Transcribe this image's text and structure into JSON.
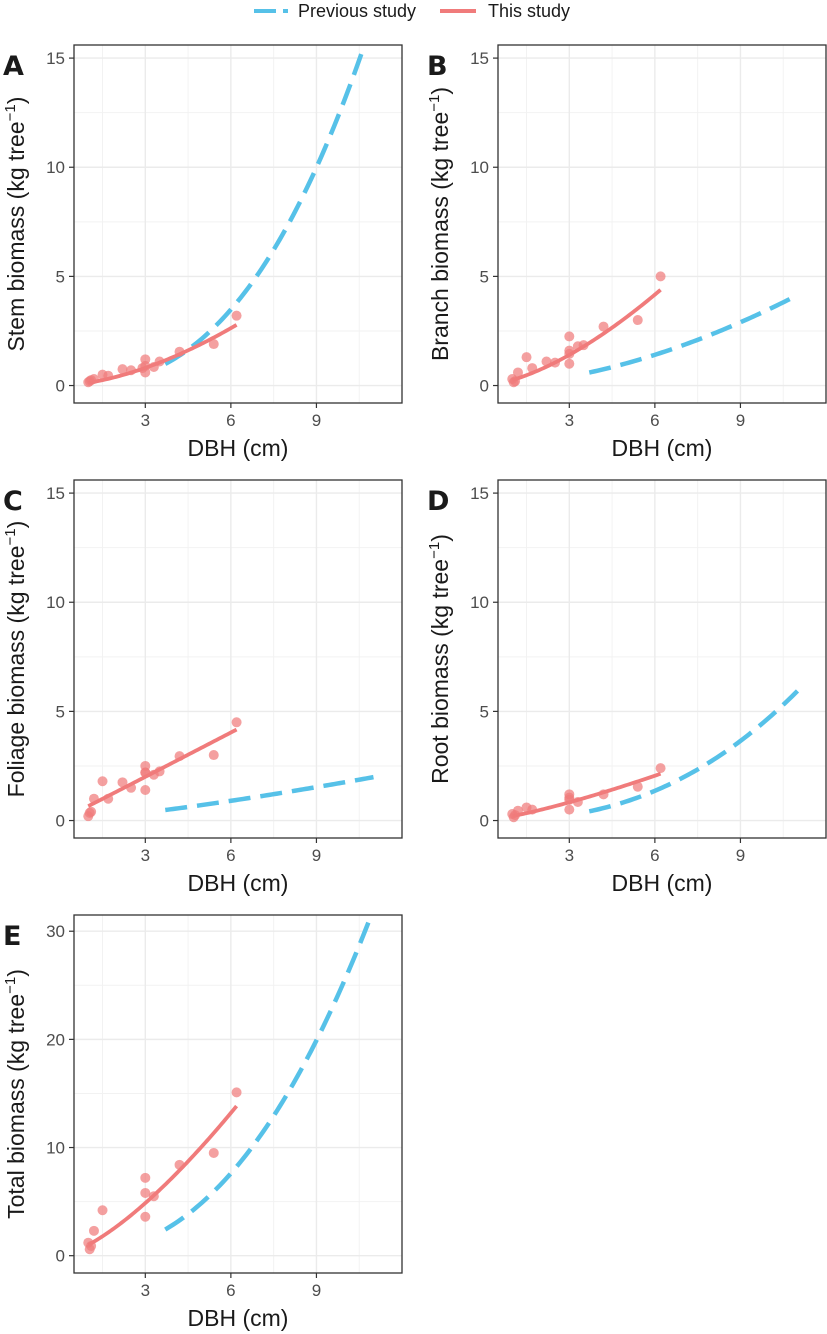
{
  "legend": [
    {
      "label": "Previous study",
      "color": "#56C1E8",
      "dash": true
    },
    {
      "label": "This study",
      "color": "#F07B7B",
      "dash": false
    }
  ],
  "chart_data": [
    {
      "panel": "A",
      "type": "scatter+line",
      "xlabel": "DBH (cm)",
      "ylabel_main": "Stem biomass (kg tree",
      "ylabel_sup": "−1",
      "ylabel_end": ")",
      "xlim": [
        0.5,
        12.0
      ],
      "ylim": [
        -0.8,
        15.6
      ],
      "xticks": [
        3,
        6,
        9
      ],
      "yticks": [
        0,
        5,
        10,
        15
      ],
      "series": [
        {
          "name": "Previous study",
          "kind": "line",
          "a": 0.033,
          "b": 2.6,
          "x_range": [
            3.7,
            11.0
          ]
        },
        {
          "name": "This study",
          "kind": "line",
          "a": 0.125,
          "b": 1.7,
          "x_range": [
            1.0,
            6.2
          ]
        },
        {
          "name": "This study",
          "kind": "points",
          "x": [
            1.0,
            1.05,
            1.1,
            1.2,
            1.5,
            1.7,
            2.2,
            2.5,
            2.9,
            3.0,
            3.0,
            3.0,
            3.3,
            3.5,
            4.2,
            5.4,
            6.2
          ],
          "y": [
            0.15,
            0.2,
            0.25,
            0.3,
            0.5,
            0.45,
            0.75,
            0.7,
            0.8,
            0.9,
            1.2,
            0.6,
            0.85,
            1.1,
            1.55,
            1.9,
            3.2
          ]
        }
      ]
    },
    {
      "panel": "B",
      "type": "scatter+line",
      "xlabel": "DBH (cm)",
      "ylabel_main": "Branch biomass (kg tree",
      "ylabel_sup": "−1",
      "ylabel_end": ")",
      "xlim": [
        0.5,
        12.0
      ],
      "ylim": [
        -0.8,
        15.6
      ],
      "xticks": [
        3,
        6,
        9
      ],
      "yticks": [
        0,
        5,
        10,
        15
      ],
      "series": [
        {
          "name": "Previous study",
          "kind": "line",
          "a": 0.058,
          "b": 1.78,
          "x_range": [
            3.7,
            11.0
          ]
        },
        {
          "name": "This study",
          "kind": "line",
          "a": 0.25,
          "b": 1.57,
          "x_range": [
            1.0,
            6.2
          ]
        },
        {
          "name": "This study",
          "kind": "points",
          "x": [
            1.0,
            1.05,
            1.1,
            1.2,
            1.5,
            1.7,
            2.2,
            2.5,
            3.0,
            3.0,
            3.0,
            3.0,
            3.3,
            3.5,
            4.2,
            5.4,
            6.2
          ],
          "y": [
            0.3,
            0.15,
            0.2,
            0.6,
            1.3,
            0.8,
            1.1,
            1.05,
            2.25,
            1.45,
            1.0,
            1.6,
            1.8,
            1.85,
            2.7,
            3.0,
            5.0
          ]
        }
      ]
    },
    {
      "panel": "C",
      "type": "scatter+line",
      "xlabel": "DBH (cm)",
      "ylabel_main": "Foliage biomass (kg tree",
      "ylabel_sup": "−1",
      "ylabel_end": ")",
      "xlim": [
        0.5,
        12.0
      ],
      "ylim": [
        -0.8,
        15.6
      ],
      "xticks": [
        3,
        6,
        9
      ],
      "yticks": [
        0,
        5,
        10,
        15
      ],
      "series": [
        {
          "name": "Previous study",
          "kind": "line",
          "a": 0.088,
          "b": 1.3,
          "x_range": [
            3.7,
            11.0
          ]
        },
        {
          "name": "This study",
          "kind": "line",
          "a": 0.66,
          "b": 1.01,
          "x_range": [
            1.0,
            6.2
          ]
        },
        {
          "name": "This study",
          "kind": "points",
          "x": [
            1.0,
            1.05,
            1.1,
            1.2,
            1.5,
            1.7,
            2.2,
            2.5,
            3.0,
            3.0,
            3.0,
            3.0,
            3.3,
            3.5,
            4.2,
            5.4,
            6.2
          ],
          "y": [
            0.2,
            0.35,
            0.4,
            1.0,
            1.8,
            1.0,
            1.75,
            1.5,
            2.5,
            2.2,
            1.4,
            2.2,
            2.1,
            2.25,
            2.95,
            3.0,
            4.5
          ]
        }
      ]
    },
    {
      "panel": "D",
      "type": "scatter+line",
      "xlabel": "DBH (cm)",
      "ylabel_main": "Root biomass (kg tree",
      "ylabel_sup": "−1",
      "ylabel_end": ")",
      "xlim": [
        0.5,
        12.0
      ],
      "ylim": [
        -0.8,
        15.6
      ],
      "xticks": [
        3,
        6,
        9
      ],
      "yticks": [
        0,
        5,
        10,
        15
      ],
      "series": [
        {
          "name": "Previous study",
          "kind": "line",
          "a": 0.0175,
          "b": 2.43,
          "x_range": [
            3.7,
            11.0
          ]
        },
        {
          "name": "This study",
          "kind": "line",
          "a": 0.2,
          "b": 1.3,
          "x_range": [
            1.0,
            6.2
          ]
        },
        {
          "name": "This study",
          "kind": "points",
          "x": [
            1.0,
            1.05,
            1.1,
            1.2,
            1.5,
            1.7,
            3.0,
            3.0,
            3.0,
            3.0,
            3.3,
            4.2,
            5.4,
            6.2
          ],
          "y": [
            0.3,
            0.15,
            0.25,
            0.45,
            0.6,
            0.5,
            1.2,
            1.05,
            0.5,
            0.95,
            0.85,
            1.2,
            1.55,
            2.4
          ]
        }
      ]
    },
    {
      "panel": "E",
      "type": "scatter+line",
      "xlabel": "DBH (cm)",
      "ylabel_main": "Total biomass (kg tree",
      "ylabel_sup": "−1",
      "ylabel_end": ")",
      "xlim": [
        0.5,
        12.0
      ],
      "ylim": [
        -1.6,
        31.5
      ],
      "xticks": [
        3,
        6,
        9
      ],
      "yticks": [
        0,
        10,
        20,
        30
      ],
      "series": [
        {
          "name": "Previous study",
          "kind": "line",
          "a": 0.109,
          "b": 2.37,
          "x_range": [
            3.7,
            11.0
          ]
        },
        {
          "name": "This study",
          "kind": "line",
          "a": 1.0,
          "b": 1.44,
          "x_range": [
            1.0,
            6.2
          ]
        },
        {
          "name": "This study",
          "kind": "points",
          "x": [
            1.0,
            1.05,
            1.1,
            1.2,
            1.5,
            3.0,
            3.0,
            3.0,
            3.3,
            4.2,
            5.4,
            6.2
          ],
          "y": [
            1.2,
            0.6,
            0.9,
            2.3,
            4.2,
            7.2,
            5.8,
            3.6,
            5.5,
            8.4,
            9.5,
            15.1
          ]
        }
      ]
    }
  ]
}
